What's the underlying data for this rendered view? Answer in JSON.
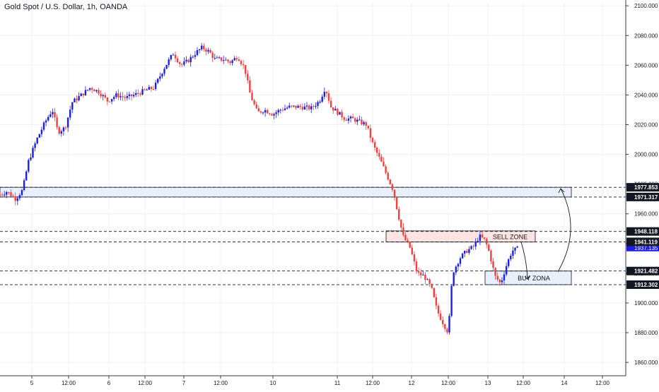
{
  "title": "Gold Spot / U.S. Dollar, 1h, OANDA",
  "colors": {
    "up": "#1f1fe0",
    "down": "#f04040",
    "wick": "#8a8aa0",
    "grid": "#eef0f3",
    "axis": "#363a45",
    "hline": "#131722",
    "current_badge": "#1f1fe0",
    "sell_zone_fill": "#fbe4e1",
    "buy_zone_fill": "#e9effb",
    "resistance_fill": "#e9effb"
  },
  "chart_data": {
    "type": "candlestick",
    "y_ticks": [
      "2100.000",
      "2080.000",
      "2060.000",
      "2040.000",
      "2020.000",
      "2000.000",
      "1980.000",
      "1960.000",
      "1940.000",
      "1920.000",
      "1900.000",
      "1880.000",
      "1860.000"
    ],
    "ylim": [
      1851,
      2102
    ],
    "x_ticks": [
      {
        "label": "5",
        "t": 45
      },
      {
        "label": "12:00",
        "t": 97
      },
      {
        "label": "6",
        "t": 154
      },
      {
        "label": "12:00",
        "t": 205
      },
      {
        "label": "7",
        "t": 260
      },
      {
        "label": "12:00",
        "t": 312
      },
      {
        "label": "10",
        "t": 386
      },
      {
        "label": "11",
        "t": 477
      },
      {
        "label": "12:00",
        "t": 527
      },
      {
        "label": "12",
        "t": 582
      },
      {
        "label": "12:00",
        "t": 634
      },
      {
        "label": "13",
        "t": 690
      },
      {
        "label": "12:00",
        "t": 740
      },
      {
        "label": "14",
        "t": 798
      },
      {
        "label": "12:00",
        "t": 852
      }
    ],
    "xlim": [
      0,
      885
    ],
    "levels": [
      {
        "label": "1977.853",
        "value": 1977.853
      },
      {
        "label": "1971.317",
        "value": 1971.317
      },
      {
        "label": "1948.118",
        "value": 1948.118
      },
      {
        "label": "1941.119",
        "value": 1941.119
      },
      {
        "label": "1921.482",
        "value": 1921.482
      },
      {
        "label": "1912.302",
        "value": 1912.302
      }
    ],
    "current_price": {
      "label": "1937.135",
      "value": 1937.135
    },
    "zones": [
      {
        "name": "resistance",
        "x0": 0,
        "x1": 808,
        "y_top": 1977.853,
        "y_bottom": 1971.317,
        "label": ""
      },
      {
        "name": "sell",
        "x0": 546,
        "x1": 757,
        "y_top": 1948.5,
        "y_bottom": 1941.0,
        "label": "SELL ZONE"
      },
      {
        "name": "buy",
        "x0": 686,
        "x1": 808,
        "y_top": 1921.482,
        "y_bottom": 1912.302,
        "label": "BUY ZONA"
      }
    ],
    "ohlc_waypoints": [
      [
        0,
        1973
      ],
      [
        10,
        1975
      ],
      [
        22,
        1970
      ],
      [
        32,
        1976
      ],
      [
        40,
        1995
      ],
      [
        52,
        2010
      ],
      [
        64,
        2022
      ],
      [
        74,
        2030
      ],
      [
        82,
        2015
      ],
      [
        92,
        2018
      ],
      [
        102,
        2035
      ],
      [
        115,
        2040
      ],
      [
        128,
        2045
      ],
      [
        140,
        2042
      ],
      [
        152,
        2036
      ],
      [
        165,
        2040
      ],
      [
        178,
        2038
      ],
      [
        190,
        2040
      ],
      [
        205,
        2043
      ],
      [
        218,
        2045
      ],
      [
        232,
        2058
      ],
      [
        245,
        2068
      ],
      [
        256,
        2060
      ],
      [
        266,
        2063
      ],
      [
        276,
        2068
      ],
      [
        286,
        2072
      ],
      [
        296,
        2069
      ],
      [
        304,
        2064
      ],
      [
        316,
        2064
      ],
      [
        326,
        2062
      ],
      [
        336,
        2066
      ],
      [
        346,
        2058
      ],
      [
        354,
        2040
      ],
      [
        364,
        2028
      ],
      [
        374,
        2030
      ],
      [
        386,
        2027
      ],
      [
        396,
        2030
      ],
      [
        410,
        2032
      ],
      [
        424,
        2032
      ],
      [
        440,
        2031
      ],
      [
        452,
        2036
      ],
      [
        460,
        2045
      ],
      [
        468,
        2032
      ],
      [
        478,
        2028
      ],
      [
        488,
        2024
      ],
      [
        498,
        2024
      ],
      [
        508,
        2022
      ],
      [
        518,
        2020
      ],
      [
        528,
        2006
      ],
      [
        538,
        1996
      ],
      [
        548,
        1985
      ],
      [
        556,
        1976
      ],
      [
        562,
        1962
      ],
      [
        570,
        1945
      ],
      [
        580,
        1937
      ],
      [
        590,
        1920
      ],
      [
        600,
        1918
      ],
      [
        610,
        1910
      ],
      [
        618,
        1895
      ],
      [
        626,
        1887
      ],
      [
        634,
        1880
      ],
      [
        640,
        1920
      ],
      [
        650,
        1930
      ],
      [
        660,
        1935
      ],
      [
        670,
        1938
      ],
      [
        678,
        1945
      ],
      [
        686,
        1942
      ],
      [
        692,
        1934
      ],
      [
        700,
        1918
      ],
      [
        708,
        1913
      ],
      [
        716,
        1925
      ],
      [
        724,
        1935
      ],
      [
        734,
        1937
      ]
    ],
    "arrows": [
      {
        "from_x": 793,
        "from_y": 1921,
        "to_x": 793,
        "to_y": 1977
      },
      {
        "from_x": 737,
        "from_y": 1941,
        "to_x": 746,
        "to_y": 1916
      }
    ]
  }
}
